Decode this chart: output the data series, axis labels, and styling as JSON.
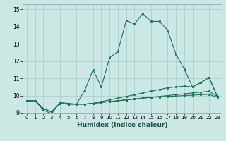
{
  "xlabel": "Humidex (Indice chaleur)",
  "ylabel": "",
  "bg_color": "#cce8e4",
  "grid_color": "#b0ceca",
  "line_color": "#1a7060",
  "xlim": [
    -0.5,
    23.5
  ],
  "ylim": [
    9,
    15.3
  ],
  "yticks": [
    9,
    10,
    11,
    12,
    13,
    14,
    15
  ],
  "xticks": [
    0,
    1,
    2,
    3,
    4,
    5,
    6,
    7,
    8,
    9,
    10,
    11,
    12,
    13,
    14,
    15,
    16,
    17,
    18,
    19,
    20,
    21,
    22,
    23
  ],
  "series": [
    [
      9.7,
      9.7,
      9.15,
      8.95,
      9.6,
      9.55,
      9.5,
      10.3,
      11.5,
      10.5,
      12.2,
      12.55,
      14.35,
      14.15,
      14.75,
      14.3,
      14.3,
      13.8,
      12.4,
      11.55,
      10.5,
      10.75,
      11.05,
      9.95
    ],
    [
      9.7,
      9.7,
      9.25,
      9.05,
      9.55,
      9.5,
      9.5,
      9.5,
      9.55,
      9.65,
      9.75,
      9.85,
      9.95,
      10.05,
      10.15,
      10.25,
      10.35,
      10.45,
      10.5,
      10.55,
      10.5,
      10.75,
      11.05,
      9.95
    ],
    [
      9.7,
      9.7,
      9.25,
      9.05,
      9.55,
      9.5,
      9.5,
      9.5,
      9.55,
      9.6,
      9.65,
      9.7,
      9.75,
      9.8,
      9.85,
      9.9,
      9.95,
      10.0,
      10.05,
      10.1,
      10.15,
      10.2,
      10.25,
      9.95
    ],
    [
      9.7,
      9.7,
      9.25,
      9.05,
      9.55,
      9.5,
      9.5,
      9.5,
      9.55,
      9.6,
      9.65,
      9.7,
      9.75,
      9.8,
      9.85,
      9.9,
      9.92,
      9.95,
      9.97,
      10.0,
      10.02,
      10.05,
      10.07,
      9.9
    ]
  ]
}
